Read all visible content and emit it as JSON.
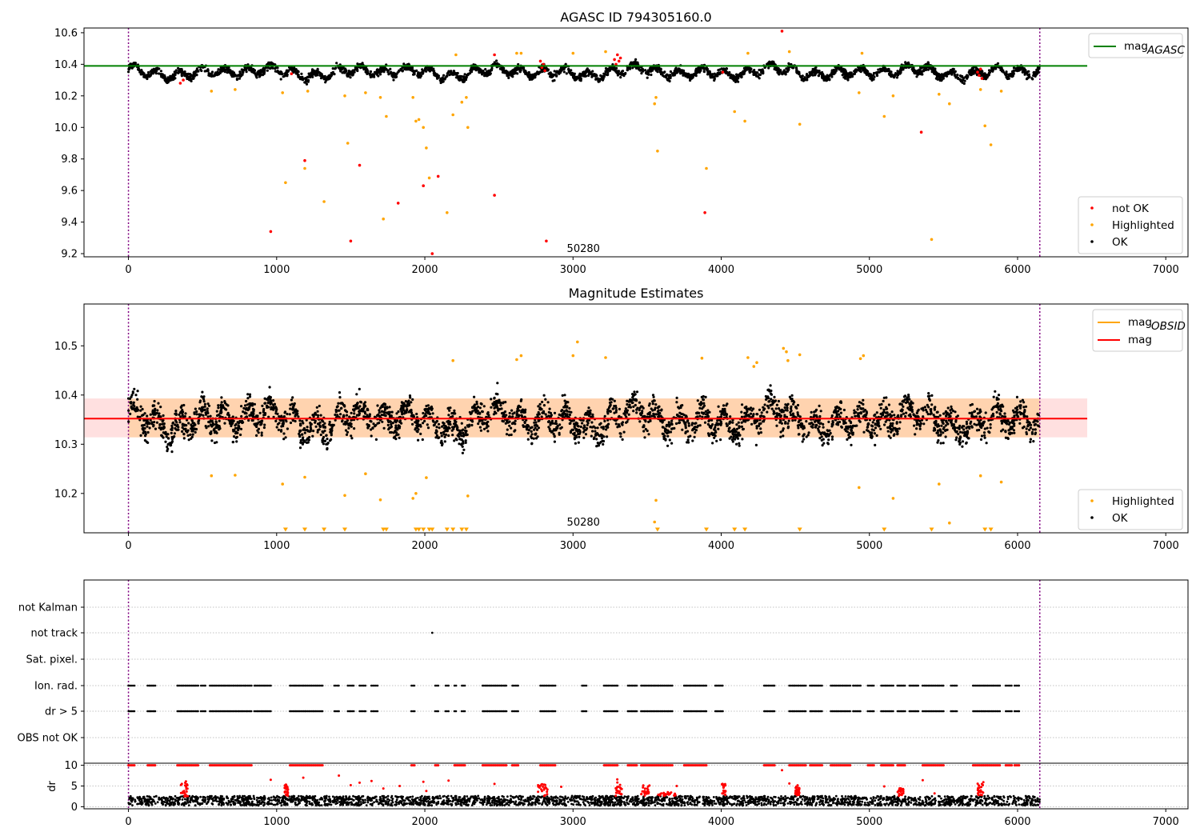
{
  "chart_data": [
    {
      "type": "scatter",
      "title": "AGASC ID 794305160.0",
      "xlim": [
        -300,
        7150
      ],
      "ylim": [
        9.18,
        10.63
      ],
      "xticks": [
        0,
        1000,
        2000,
        3000,
        4000,
        5000,
        6000,
        7000
      ],
      "yticks": [
        9.2,
        9.4,
        9.6,
        9.8,
        10.0,
        10.2,
        10.4,
        10.6
      ],
      "ytick_format": 1,
      "annotation": {
        "text": "50280",
        "x": 3070,
        "y": 9.22
      },
      "vlines": [
        0,
        6150
      ],
      "reference_line": {
        "name": "mag_AGASC",
        "label": "mag",
        "sub": "AGASC",
        "y": 10.39,
        "x_range": [
          -300,
          6470
        ],
        "color": "#008000"
      },
      "ok_band": {
        "center": 10.35,
        "amplitude": 0.045,
        "noise": 0.022,
        "x_range": [
          0,
          6150
        ],
        "n": 3000,
        "color": "#000000"
      },
      "highlighted": {
        "color": "#ffa500",
        "points": [
          [
            560,
            10.23
          ],
          [
            720,
            10.24
          ],
          [
            1040,
            10.22
          ],
          [
            1060,
            9.65
          ],
          [
            1190,
            9.74
          ],
          [
            1210,
            10.23
          ],
          [
            1320,
            9.53
          ],
          [
            1460,
            10.2
          ],
          [
            1480,
            9.9
          ],
          [
            1600,
            10.22
          ],
          [
            1700,
            10.19
          ],
          [
            1720,
            9.42
          ],
          [
            1740,
            10.07
          ],
          [
            1920,
            10.19
          ],
          [
            1940,
            10.04
          ],
          [
            1960,
            10.05
          ],
          [
            1990,
            10.0
          ],
          [
            2010,
            9.87
          ],
          [
            2030,
            9.68
          ],
          [
            2150,
            9.46
          ],
          [
            2190,
            10.08
          ],
          [
            2210,
            10.46
          ],
          [
            2250,
            10.16
          ],
          [
            2280,
            10.19
          ],
          [
            2290,
            10.0
          ],
          [
            2620,
            10.47
          ],
          [
            2650,
            10.47
          ],
          [
            3000,
            10.47
          ],
          [
            3220,
            10.48
          ],
          [
            3550,
            10.15
          ],
          [
            3560,
            10.19
          ],
          [
            3570,
            9.85
          ],
          [
            3900,
            9.74
          ],
          [
            4090,
            10.1
          ],
          [
            4160,
            10.04
          ],
          [
            4180,
            10.47
          ],
          [
            4460,
            10.48
          ],
          [
            4530,
            10.02
          ],
          [
            4930,
            10.22
          ],
          [
            4950,
            10.47
          ],
          [
            5100,
            10.07
          ],
          [
            5160,
            10.2
          ],
          [
            5420,
            9.29
          ],
          [
            5470,
            10.21
          ],
          [
            5540,
            10.15
          ],
          [
            5780,
            10.01
          ],
          [
            5820,
            9.89
          ],
          [
            5890,
            10.23
          ],
          [
            5750,
            10.24
          ]
        ]
      },
      "not_ok": {
        "color": "#ff0000",
        "points": [
          [
            960,
            9.34
          ],
          [
            1190,
            9.79
          ],
          [
            1500,
            9.28
          ],
          [
            1560,
            9.76
          ],
          [
            1820,
            9.52
          ],
          [
            1990,
            9.63
          ],
          [
            2050,
            9.2
          ],
          [
            2090,
            9.69
          ],
          [
            2470,
            9.57
          ],
          [
            2820,
            9.28
          ],
          [
            3890,
            9.46
          ],
          [
            5350,
            9.97
          ],
          [
            350,
            10.28
          ],
          [
            370,
            10.3
          ],
          [
            1100,
            10.34
          ],
          [
            2470,
            10.46
          ],
          [
            2780,
            10.42
          ],
          [
            2790,
            10.38
          ],
          [
            2800,
            10.4
          ],
          [
            2810,
            10.36
          ],
          [
            3280,
            10.43
          ],
          [
            3290,
            10.4
          ],
          [
            3300,
            10.46
          ],
          [
            3310,
            10.42
          ],
          [
            3320,
            10.44
          ],
          [
            4010,
            10.35
          ],
          [
            4410,
            10.61
          ],
          [
            5730,
            10.35
          ],
          [
            5740,
            10.33
          ],
          [
            5750,
            10.37
          ],
          [
            5760,
            10.31
          ]
        ]
      },
      "legend_lines": [
        {
          "label": "mag",
          "sub": "AGASC",
          "color": "#008000"
        }
      ],
      "legend_markers": [
        {
          "label": "not OK",
          "color": "#ff0000"
        },
        {
          "label": "Highlighted",
          "color": "#ffa500"
        },
        {
          "label": "OK",
          "color": "#000000"
        }
      ]
    },
    {
      "type": "scatter",
      "title": "Magnitude Estimates",
      "xlim": [
        -300,
        7150
      ],
      "ylim": [
        10.12,
        10.585
      ],
      "xticks": [
        0,
        1000,
        2000,
        3000,
        4000,
        5000,
        6000,
        7000
      ],
      "yticks": [
        10.2,
        10.3,
        10.4,
        10.5
      ],
      "ytick_format": 1,
      "annotation": {
        "text": "50280",
        "x": 3070,
        "y": 10.138
      },
      "vlines": [
        0,
        6150
      ],
      "mag_line": {
        "y": 10.352,
        "x_range": [
          -300,
          6470
        ],
        "color": "#ff0000"
      },
      "mag_band": {
        "y_low": 10.314,
        "y_high": 10.393,
        "x_range": [
          -300,
          6470
        ],
        "color": "#ff0000"
      },
      "obsid_band": {
        "y_low": 10.314,
        "y_high": 10.393,
        "x_range": [
          0,
          6150
        ],
        "color": "#ffa500"
      },
      "ok_band": {
        "center": 10.35,
        "amplitude": 0.035,
        "noise": 0.028,
        "x_range": [
          0,
          6150
        ],
        "n": 3200,
        "color": "#000000"
      },
      "highlighted": {
        "color": "#ffa500",
        "points": [
          [
            560,
            10.236
          ],
          [
            720,
            10.237
          ],
          [
            1040,
            10.219
          ],
          [
            1190,
            10.233
          ],
          [
            1460,
            10.196
          ],
          [
            1600,
            10.24
          ],
          [
            1700,
            10.187
          ],
          [
            1920,
            10.19
          ],
          [
            1940,
            10.2
          ],
          [
            2010,
            10.232
          ],
          [
            2190,
            10.47
          ],
          [
            2290,
            10.195
          ],
          [
            2620,
            10.472
          ],
          [
            2650,
            10.48
          ],
          [
            3000,
            10.48
          ],
          [
            3030,
            10.508
          ],
          [
            3220,
            10.476
          ],
          [
            3560,
            10.186
          ],
          [
            3550,
            10.142
          ],
          [
            3870,
            10.475
          ],
          [
            4180,
            10.476
          ],
          [
            4220,
            10.458
          ],
          [
            4240,
            10.466
          ],
          [
            4420,
            10.495
          ],
          [
            4440,
            10.488
          ],
          [
            4450,
            10.47
          ],
          [
            4530,
            10.482
          ],
          [
            4930,
            10.212
          ],
          [
            4940,
            10.474
          ],
          [
            4960,
            10.48
          ],
          [
            5160,
            10.19
          ],
          [
            5470,
            10.219
          ],
          [
            5540,
            10.14
          ],
          [
            5750,
            10.236
          ],
          [
            5890,
            10.223
          ]
        ]
      },
      "below_axis": {
        "color": "#ffa500",
        "x": [
          1060,
          1190,
          1320,
          1460,
          1720,
          1740,
          1940,
          1960,
          1990,
          2030,
          2050,
          2150,
          2190,
          2250,
          2280,
          3570,
          3900,
          4090,
          4160,
          4530,
          5100,
          5420,
          5780,
          5820
        ]
      },
      "legend_lines": [
        {
          "label": "mag",
          "sub": "OBSID",
          "color": "#ffa500"
        },
        {
          "label": "mag",
          "sub": "",
          "color": "#ff0000"
        }
      ],
      "legend_markers": [
        {
          "label": "Highlighted",
          "color": "#ffa500"
        },
        {
          "label": "OK",
          "color": "#000000"
        }
      ]
    },
    {
      "type": "scatter",
      "title": "",
      "xlim": [
        -300,
        7150
      ],
      "categories": [
        "not Kalman",
        "not track",
        "Sat. pixel.",
        "Ion. rad.",
        "dr > 5",
        "OBS not OK"
      ],
      "vlines": [
        0,
        6150
      ],
      "not_track_points": [
        2050
      ],
      "flag_segments": [
        [
          0,
          40
        ],
        [
          130,
          180
        ],
        [
          330,
          470
        ],
        [
          490,
          520
        ],
        [
          550,
          830
        ],
        [
          850,
          960
        ],
        [
          1090,
          1310
        ],
        [
          1390,
          1420
        ],
        [
          1480,
          1520
        ],
        [
          1560,
          1600
        ],
        [
          1640,
          1680
        ],
        [
          1910,
          1930
        ],
        [
          2070,
          2090
        ],
        [
          2140,
          2160
        ],
        [
          2200,
          2210
        ],
        [
          2250,
          2270
        ],
        [
          2390,
          2550
        ],
        [
          2590,
          2630
        ],
        [
          2780,
          2880
        ],
        [
          3060,
          3090
        ],
        [
          3210,
          3300
        ],
        [
          3370,
          3430
        ],
        [
          3460,
          3670
        ],
        [
          3750,
          3900
        ],
        [
          3960,
          4010
        ],
        [
          4290,
          4360
        ],
        [
          4460,
          4570
        ],
        [
          4600,
          4680
        ],
        [
          4740,
          4870
        ],
        [
          4890,
          4940
        ],
        [
          4990,
          5030
        ],
        [
          5080,
          5160
        ],
        [
          5190,
          5240
        ],
        [
          5270,
          5330
        ],
        [
          5360,
          5500
        ],
        [
          5550,
          5590
        ],
        [
          5700,
          5880
        ],
        [
          5920,
          5960
        ],
        [
          5980,
          6010
        ]
      ],
      "flag_color": "#000000"
    },
    {
      "type": "scatter",
      "title": "",
      "ylabel": "dr",
      "xlim": [
        -300,
        7150
      ],
      "ylim": [
        -0.5,
        10.5
      ],
      "xticks": [
        0,
        1000,
        2000,
        3000,
        4000,
        5000,
        6000,
        7000
      ],
      "yticks": [
        0,
        5,
        10
      ],
      "ytick_format": 0,
      "vlines": [
        0,
        6150
      ],
      "ok_band": {
        "low": 0.3,
        "high": 2.6,
        "x_range": [
          0,
          6150
        ],
        "n": 2800,
        "color": "#000000"
      },
      "saturated": {
        "y": 10,
        "color": "#ff0000",
        "segments": [
          [
            0,
            40
          ],
          [
            130,
            180
          ],
          [
            330,
            470
          ],
          [
            550,
            830
          ],
          [
            1090,
            1310
          ],
          [
            1910,
            1930
          ],
          [
            2070,
            2090
          ],
          [
            2200,
            2270
          ],
          [
            2390,
            2550
          ],
          [
            2590,
            2630
          ],
          [
            2780,
            2880
          ],
          [
            3210,
            3300
          ],
          [
            3370,
            3430
          ],
          [
            3460,
            3670
          ],
          [
            3750,
            3900
          ],
          [
            4290,
            4360
          ],
          [
            4460,
            4570
          ],
          [
            4600,
            4680
          ],
          [
            4740,
            4870
          ],
          [
            4990,
            5030
          ],
          [
            5080,
            5160
          ],
          [
            5190,
            5240
          ],
          [
            5360,
            5500
          ],
          [
            5700,
            5880
          ],
          [
            5920,
            5960
          ],
          [
            5980,
            6010
          ]
        ]
      },
      "clusters": {
        "color": "#ff0000",
        "groups": [
          [
            350,
            400,
            2.5,
            6.2
          ],
          [
            1050,
            1080,
            2.5,
            5.5
          ],
          [
            2760,
            2830,
            2.5,
            5.8
          ],
          [
            3280,
            3330,
            2.6,
            6.8
          ],
          [
            3460,
            3520,
            2.6,
            5.2
          ],
          [
            3560,
            3700,
            2.6,
            3.6
          ],
          [
            4000,
            4030,
            2.6,
            5.5
          ],
          [
            4500,
            4530,
            2.6,
            5.3
          ],
          [
            5190,
            5230,
            2.6,
            4.5
          ],
          [
            5730,
            5770,
            2.6,
            6.0
          ]
        ]
      },
      "scattered": {
        "color": "#ff0000",
        "points": [
          [
            960,
            6.5
          ],
          [
            1180,
            7.0
          ],
          [
            1420,
            7.5
          ],
          [
            1500,
            5.2
          ],
          [
            1560,
            5.8
          ],
          [
            1640,
            6.2
          ],
          [
            1720,
            4.4
          ],
          [
            1830,
            5.0
          ],
          [
            1990,
            6.0
          ],
          [
            2010,
            3.8
          ],
          [
            2160,
            6.3
          ],
          [
            2470,
            5.5
          ],
          [
            2920,
            4.8
          ],
          [
            3700,
            5.0
          ],
          [
            4410,
            8.8
          ],
          [
            4460,
            5.6
          ],
          [
            5100,
            4.9
          ],
          [
            5360,
            6.4
          ],
          [
            5440,
            3.2
          ]
        ]
      }
    }
  ]
}
